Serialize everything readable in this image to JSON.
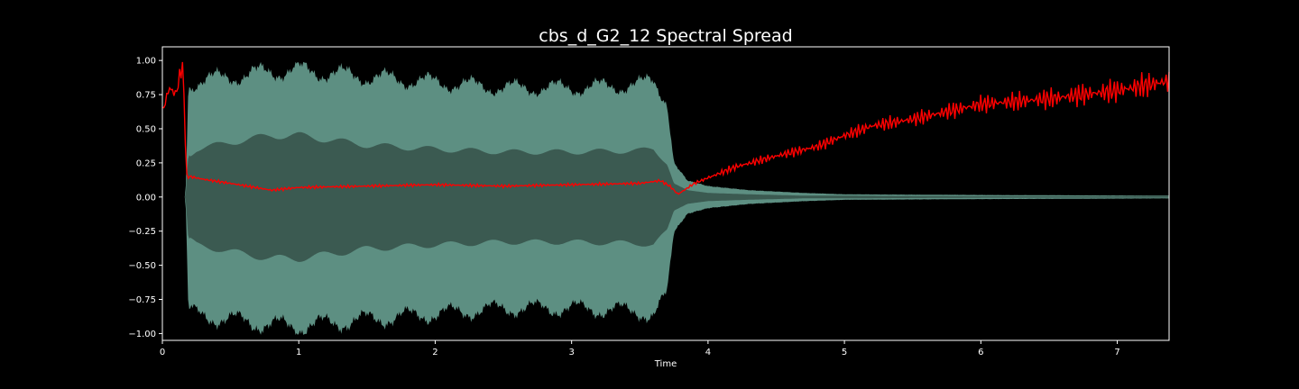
{
  "chart_data": {
    "type": "line",
    "title": "cbs_d_G2_12 Spectral Spread",
    "xlabel": "Time",
    "ylabel": "",
    "xlim": [
      0,
      7.38
    ],
    "ylim": [
      -1.05,
      1.1
    ],
    "x_ticks": [
      0,
      1,
      2,
      3,
      4,
      5,
      6,
      7
    ],
    "y_ticks": [
      1.0,
      0.75,
      0.5,
      0.25,
      0.0,
      -0.25,
      -0.5,
      -0.75,
      -1.0
    ],
    "y_tick_labels": [
      "1.00",
      "0.75",
      "0.50",
      "0.25",
      "0.00",
      "−0.25",
      "−0.50",
      "−0.75",
      "−1.00"
    ],
    "grid": false,
    "legend": "none",
    "colors": {
      "background": "#000000",
      "waveform_outer": "#5d8f82",
      "waveform_inner": "#3b5a51",
      "spread_line": "#ff0000",
      "axis": "#ffffff"
    },
    "series": [
      {
        "kind": "waveform_envelope",
        "note": "amplitude envelope (max abs amplitude) of the audio waveform",
        "x": [
          0,
          0.17,
          0.19,
          0.25,
          0.5,
          0.8,
          1.0,
          1.5,
          2.0,
          2.5,
          3.0,
          3.5,
          3.6,
          3.7,
          3.75,
          3.85,
          4.0,
          4.3,
          4.7,
          5.0,
          6.0,
          7.38
        ],
        "values": [
          0.0,
          0.0,
          0.8,
          0.85,
          0.88,
          0.92,
          0.93,
          0.88,
          0.84,
          0.8,
          0.8,
          0.82,
          0.86,
          0.7,
          0.25,
          0.12,
          0.08,
          0.05,
          0.03,
          0.02,
          0.015,
          0.01
        ],
        "inner_values": [
          0.0,
          0.0,
          0.3,
          0.35,
          0.4,
          0.45,
          0.45,
          0.38,
          0.35,
          0.33,
          0.33,
          0.34,
          0.35,
          0.25,
          0.1,
          0.05,
          0.03,
          0.02,
          0.01,
          0.01,
          0.005,
          0.005
        ]
      },
      {
        "kind": "spectral_spread",
        "x": [
          0,
          0.05,
          0.1,
          0.13,
          0.15,
          0.17,
          0.18,
          0.2,
          0.3,
          0.5,
          0.8,
          1.0,
          1.5,
          2.0,
          2.5,
          3.0,
          3.5,
          3.65,
          3.72,
          3.78,
          3.9,
          4.0,
          4.2,
          4.5,
          4.8,
          5.0,
          5.2,
          5.5,
          6.0,
          6.5,
          7.0,
          7.38
        ],
        "values": [
          0.62,
          0.8,
          0.75,
          0.9,
          0.97,
          0.4,
          0.14,
          0.15,
          0.13,
          0.1,
          0.05,
          0.07,
          0.08,
          0.09,
          0.08,
          0.09,
          0.1,
          0.12,
          0.08,
          0.02,
          0.1,
          0.14,
          0.22,
          0.3,
          0.37,
          0.45,
          0.52,
          0.57,
          0.68,
          0.72,
          0.78,
          0.85
        ]
      }
    ]
  }
}
